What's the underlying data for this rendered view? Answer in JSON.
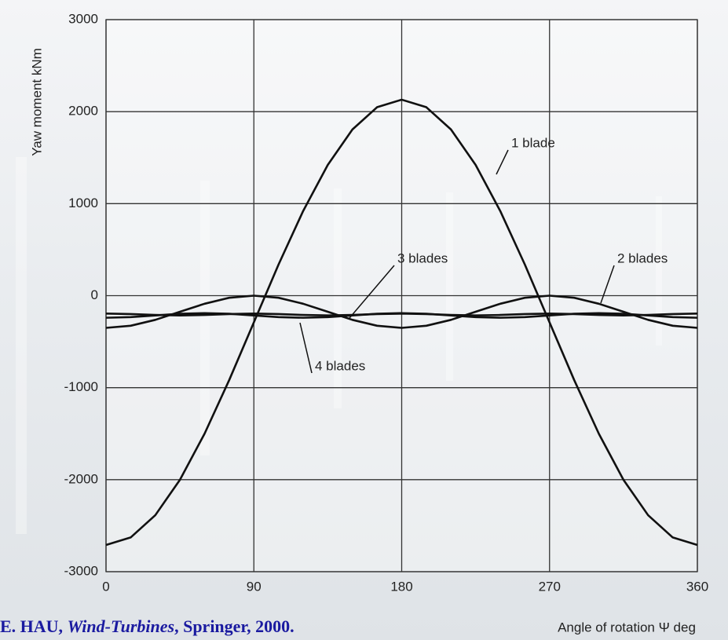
{
  "chart_data": {
    "type": "line",
    "ylabel": "Yaw moment kNm",
    "xlabel": "Angle of rotation Ψ deg",
    "source": [
      "E. HAU, ",
      "Wind-Turbines",
      ", Springer, 2000."
    ],
    "x": [
      0,
      15,
      30,
      45,
      60,
      75,
      90,
      105,
      120,
      135,
      150,
      165,
      180,
      195,
      210,
      225,
      240,
      255,
      270,
      285,
      300,
      315,
      330,
      345,
      360
    ],
    "series": [
      {
        "name": "1 blade",
        "color": "#111111",
        "values": [
          -2710,
          -2628,
          -2386,
          -2001,
          -1500,
          -917,
          -290,
          337,
          920,
          1421,
          1806,
          2048,
          2130,
          2048,
          1806,
          1421,
          920,
          337,
          -290,
          -917,
          -1500,
          -2001,
          -2386,
          -2628,
          -2710
        ]
      },
      {
        "name": "2 blades",
        "color": "#111111",
        "values": [
          -350,
          -327,
          -263,
          -175,
          -88,
          -23,
          0,
          -23,
          -88,
          -175,
          -263,
          -327,
          -350,
          -327,
          -263,
          -175,
          -88,
          -23,
          0,
          -23,
          -88,
          -175,
          -263,
          -327,
          -350
        ]
      },
      {
        "name": "3 blades",
        "color": "#111111",
        "values": [
          -240,
          -233,
          -215,
          -197,
          -190,
          -197,
          -215,
          -233,
          -240,
          -233,
          -215,
          -197,
          -190,
          -197,
          -215,
          -233,
          -240,
          -233,
          -215,
          -197,
          -190,
          -197,
          -215,
          -233,
          -240
        ]
      },
      {
        "name": "4 blades",
        "color": "#111111",
        "values": [
          -195,
          -200,
          -210,
          -215,
          -210,
          -200,
          -195,
          -200,
          -210,
          -215,
          -210,
          -200,
          -195,
          -200,
          -210,
          -215,
          -210,
          -200,
          -195,
          -200,
          -210,
          -215,
          -210,
          -200,
          -195
        ]
      }
    ],
    "xlim": [
      0,
      360
    ],
    "xticks": [
      0,
      90,
      180,
      270,
      360
    ],
    "ylim": [
      -3000,
      3000
    ],
    "yticks": [
      -3000,
      -2000,
      -1000,
      0,
      1000,
      2000,
      3000
    ],
    "grid": true
  }
}
